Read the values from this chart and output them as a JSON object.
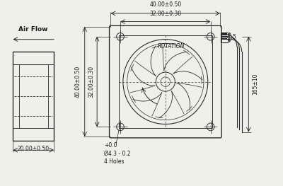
{
  "bg_color": "#f0f0eb",
  "line_color": "#2a2a2a",
  "text_color": "#1a1a1a",
  "figsize": [
    4.0,
    2.63
  ],
  "dpi": 100,
  "dims": {
    "top_outer": "40.00±0.50",
    "top_inner": "32.00±0.30",
    "left_outer": "40.00±0.50",
    "left_inner": "32.00±0.30",
    "hole_label": "+0.0\nØ4.3 - 0.2\n4 Holes",
    "wire_len": "165±10",
    "wire_gap": "5",
    "rotation_label": "ROTATION",
    "depth_label": "20.00±0.50",
    "airflow_label": "Air Flow"
  }
}
